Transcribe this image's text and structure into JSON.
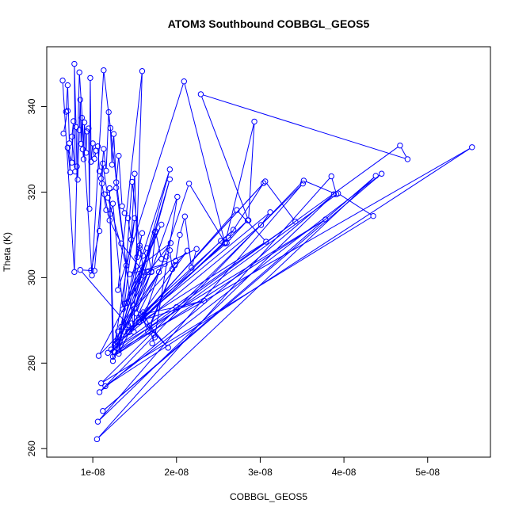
{
  "chart_data": {
    "type": "scatter",
    "title": "ATOM3 Southbound COBBGL_GEOS5",
    "xlabel": "COBBGL_GEOS5",
    "ylabel": "Theta (K)",
    "xlim": [
      4.5e-09,
      5.75e-08
    ],
    "ylim": [
      258,
      354
    ],
    "x_ticks": [
      {
        "value": 1e-08,
        "label": "1e-08"
      },
      {
        "value": 2e-08,
        "label": "2e-08"
      },
      {
        "value": 3e-08,
        "label": "3e-08"
      },
      {
        "value": 4e-08,
        "label": "4e-08"
      },
      {
        "value": 5e-08,
        "label": "5e-08"
      }
    ],
    "y_ticks": [
      {
        "value": 260,
        "label": "260"
      },
      {
        "value": 280,
        "label": "280"
      },
      {
        "value": 300,
        "label": "300"
      },
      {
        "value": 320,
        "label": "320"
      },
      {
        "value": 340,
        "label": "340"
      }
    ],
    "grid": false,
    "legend": "none",
    "color": "#0000ff",
    "series": [
      {
        "points": [
          [
            6.4e-09,
            346.1
          ],
          [
            7.8e-09,
            301.3
          ],
          [
            8.4e-09,
            348.0
          ],
          [
            9.9e-09,
            300.5
          ],
          [
            1.13e-08,
            348.5
          ],
          [
            1.49e-08,
            287.3
          ],
          [
            1.59e-08,
            348.3
          ],
          [
            1.3e-08,
            297.1
          ],
          [
            2.09e-08,
            345.9
          ],
          [
            2.58e-08,
            308.0
          ],
          [
            2.93e-08,
            336.5
          ],
          [
            2.86e-08,
            313.4
          ],
          [
            2.29e-08,
            342.9
          ],
          [
            4.76e-08,
            327.7
          ],
          [
            4.67e-08,
            330.9
          ],
          [
            1.26e-08,
            282.5
          ],
          [
            5.53e-08,
            330.5
          ],
          [
            1.15e-08,
            274.6
          ],
          [
            4.45e-08,
            324.3
          ],
          [
            1.12e-08,
            268.8
          ],
          [
            4.38e-08,
            323.8
          ],
          [
            1.05e-08,
            262.2
          ],
          [
            3.85e-08,
            323.7
          ],
          [
            3.91e-08,
            319.5
          ],
          [
            3.52e-08,
            322.7
          ],
          [
            1.08e-08,
            273.2
          ],
          [
            3.88e-08,
            319.5
          ],
          [
            1.06e-08,
            266.3
          ],
          [
            3.51e-08,
            322.0
          ],
          [
            1.1e-08,
            275.3
          ],
          [
            4.35e-08,
            314.4
          ],
          [
            3.93e-08,
            319.7
          ],
          [
            1.24e-08,
            281.5
          ],
          [
            3.78e-08,
            313.6
          ],
          [
            1.18e-08,
            282.4
          ],
          [
            3.42e-08,
            313.1
          ],
          [
            3.06e-08,
            322.5
          ],
          [
            1.22e-08,
            283.2
          ],
          [
            3.04e-08,
            322.1
          ],
          [
            2.62e-08,
            309.3
          ],
          [
            1.32e-08,
            285.0
          ],
          [
            3.01e-08,
            312.3
          ],
          [
            3.12e-08,
            315.3
          ],
          [
            1.38e-08,
            287.3
          ],
          [
            3.07e-08,
            308.4
          ],
          [
            2.72e-08,
            315.8
          ],
          [
            1.43e-08,
            287.2
          ],
          [
            2.85e-08,
            313.4
          ],
          [
            2.6e-08,
            308.1
          ],
          [
            1.46e-08,
            289.3
          ],
          [
            2.68e-08,
            311.2
          ],
          [
            2.53e-08,
            308.6
          ],
          [
            1.55e-08,
            289.6
          ],
          [
            2.58e-08,
            308.2
          ],
          [
            2.15e-08,
            322.0
          ],
          [
            1.6e-08,
            290.1
          ],
          [
            2.33e-08,
            294.6
          ],
          [
            2e-08,
            293.1
          ],
          [
            1.58e-08,
            291.4
          ],
          [
            1.66e-08,
            287.3
          ],
          [
            1.98e-08,
            302.9
          ],
          [
            1.68e-08,
            288.8
          ],
          [
            1.9e-08,
            283.6
          ],
          [
            1.52e-08,
            291.6
          ],
          [
            2.01e-08,
            318.9
          ],
          [
            1.74e-08,
            286.0
          ],
          [
            1.71e-08,
            284.6
          ],
          [
            1.73e-08,
            286.6
          ],
          [
            1.6e-08,
            291.9
          ],
          [
            2.13e-08,
            306.3
          ],
          [
            1.5e-08,
            292.8
          ],
          [
            1.92e-08,
            323.0
          ],
          [
            1.48e-08,
            293.5
          ],
          [
            1.92e-08,
            325.3
          ],
          [
            1.41e-08,
            294.1
          ],
          [
            1.82e-08,
            312.4
          ],
          [
            1.38e-08,
            293.9
          ],
          [
            1.93e-08,
            308.1
          ],
          [
            1.44e-08,
            300.8
          ],
          [
            1.86e-08,
            303.2
          ],
          [
            1.34e-08,
            288.5
          ],
          [
            1.66e-08,
            301.3
          ],
          [
            1.31e-08,
            283.0
          ],
          [
            1.59e-08,
            310.4
          ],
          [
            1.29e-08,
            284.9
          ],
          [
            1.7e-08,
            301.3
          ],
          [
            1.25e-08,
            282.7
          ],
          [
            1.2e-08,
            320.9
          ],
          [
            1.24e-08,
            280.5
          ],
          [
            1.74e-08,
            310.6
          ],
          [
            1.27e-08,
            284.5
          ],
          [
            1.79e-08,
            301.3
          ],
          [
            1.31e-08,
            282.2
          ],
          [
            1.5e-08,
            313.9
          ],
          [
            1.26e-08,
            284.2
          ],
          [
            1.3e-08,
            287.4
          ]
        ]
      },
      {
        "points": [
          [
            6.5e-09,
            333.7
          ],
          [
            7e-09,
            339.0
          ],
          [
            6.8e-09,
            338.8
          ],
          [
            7e-09,
            345.0
          ],
          [
            7.2e-09,
            331.4
          ],
          [
            7.3e-09,
            324.6
          ],
          [
            7e-09,
            330.4
          ],
          [
            7.5e-09,
            326.9
          ],
          [
            7.7e-09,
            336.6
          ],
          [
            7.5e-09,
            333.0
          ],
          [
            7.9e-09,
            324.8
          ],
          [
            7.8e-09,
            350.0
          ],
          [
            8e-09,
            335.2
          ],
          [
            8.1e-09,
            326.0
          ],
          [
            8.2e-09,
            322.9
          ],
          [
            8.4e-09,
            334.5
          ],
          [
            8.5e-09,
            341.6
          ],
          [
            8.6e-09,
            331.3
          ],
          [
            8.7e-09,
            337.4
          ],
          [
            8.8e-09,
            330.0
          ],
          [
            8.9e-09,
            327.7
          ],
          [
            9e-09,
            336.3
          ],
          [
            9.2e-09,
            329.2
          ],
          [
            9.3e-09,
            334.2
          ],
          [
            9.5e-09,
            334.9
          ],
          [
            9.6e-09,
            316.1
          ],
          [
            9.7e-09,
            346.7
          ],
          [
            9.8e-09,
            327.1
          ],
          [
            1e-08,
            331.4
          ],
          [
            1.02e-08,
            327.8
          ],
          [
            1.04e-08,
            329.7
          ],
          [
            1.06e-08,
            330.7
          ],
          [
            1.08e-08,
            324.9
          ],
          [
            1.1e-08,
            323.2
          ],
          [
            1.13e-08,
            330.1
          ],
          [
            1.16e-08,
            325.0
          ],
          [
            1.19e-08,
            338.7
          ],
          [
            1.21e-08,
            335.0
          ],
          [
            1.23e-08,
            326.4
          ],
          [
            1.25e-08,
            333.6
          ],
          [
            1.28e-08,
            322.3
          ],
          [
            1.31e-08,
            328.5
          ],
          [
            1.35e-08,
            316.7
          ],
          [
            1.38e-08,
            315.1
          ],
          [
            1.42e-08,
            313.9
          ],
          [
            1.46e-08,
            308.9
          ],
          [
            1.5e-08,
            324.3
          ],
          [
            1.53e-08,
            304.8
          ],
          [
            1.56e-08,
            306.9
          ],
          [
            1.6e-08,
            305.1
          ],
          [
            1.65e-08,
            306.9
          ],
          [
            1.7e-08,
            301.4
          ],
          [
            1.75e-08,
            310.8
          ],
          [
            1.82e-08,
            304.4
          ],
          [
            1.88e-08,
            304.9
          ],
          [
            1.92e-08,
            306.4
          ],
          [
            1.95e-08,
            302.0
          ],
          [
            1.99e-08,
            303.9
          ],
          [
            2.04e-08,
            310.0
          ],
          [
            2.1e-08,
            314.3
          ],
          [
            2.18e-08,
            302.3
          ],
          [
            2.24e-08,
            306.7
          ],
          [
            1.58e-08,
            300.6
          ],
          [
            1.07e-08,
            281.7
          ],
          [
            1.42e-08,
            288.9
          ],
          [
            8.5e-09,
            301.8
          ],
          [
            1.02e-08,
            301.6
          ],
          [
            1.11e-08,
            322.0
          ],
          [
            1.16e-08,
            315.8
          ],
          [
            1.21e-08,
            314.9
          ],
          [
            1.24e-08,
            317.3
          ],
          [
            1.36e-08,
            292.6
          ],
          [
            1.47e-08,
            322.4
          ],
          [
            1.56e-08,
            307.5
          ],
          [
            1.61e-08,
            301.2
          ],
          [
            1.34e-08,
            308.0
          ],
          [
            1.2e-08,
            313.4
          ],
          [
            1.14e-08,
            319.5
          ],
          [
            1.28e-08,
            321.0
          ],
          [
            1.4e-08,
            302.8
          ],
          [
            1.18e-08,
            318.7
          ],
          [
            1.12e-08,
            326.7
          ],
          [
            1.08e-08,
            310.9
          ],
          [
            9.8e-09,
            301.7
          ]
        ]
      }
    ]
  }
}
